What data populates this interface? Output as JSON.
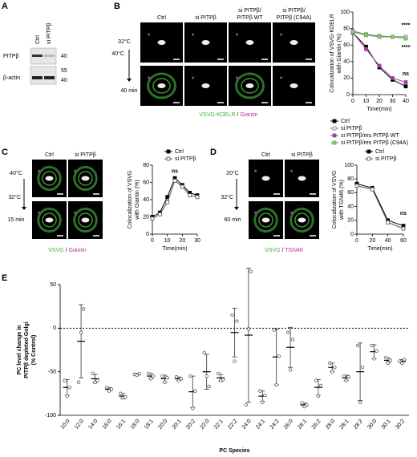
{
  "panels": {
    "A": {
      "label": "A",
      "lanes": [
        "Ctrl",
        "si PITPβ"
      ],
      "bands": [
        "PITPβ",
        "β-actin"
      ],
      "size_markers": [
        "40",
        "55",
        "40"
      ]
    },
    "B": {
      "label": "B",
      "columns": [
        [
          "Ctrl"
        ],
        [
          "si PITPβ"
        ],
        [
          "si PITPβ/",
          "PITPβ WT"
        ],
        [
          "si PITPβ/",
          "PITPβ (C94A)"
        ]
      ],
      "conditions": [
        "32°C",
        "40°C",
        "40 min"
      ],
      "stains": [
        "VSVG-KDELR",
        " / ",
        "Giantin"
      ]
    },
    "C": {
      "label": "C",
      "columns": [
        "Ctrl",
        "si PITPβ"
      ],
      "conditions": [
        "40°C",
        "32°C",
        "15 min"
      ],
      "stains": [
        "VSVG",
        " / ",
        "Giantin"
      ]
    },
    "D": {
      "label": "D",
      "columns": [
        "Ctrl",
        "si PITPβ"
      ],
      "conditions": [
        "20°C",
        "32°C",
        "60 min"
      ],
      "stains": [
        "VSVG",
        " / ",
        "TGN46"
      ]
    },
    "E": {
      "label": "E"
    }
  },
  "chart_data": [
    {
      "type": "line",
      "ylabel": [
        "Colocalization of VSVG-KDELR",
        "with Giantin (%)"
      ],
      "xlabel": "Time(min)",
      "x": [
        0,
        10,
        20,
        30,
        40
      ],
      "xlim": [
        0,
        40
      ],
      "xticks": [
        0,
        10,
        20,
        30,
        40
      ],
      "ylim": [
        0,
        100
      ],
      "yticks": [
        0,
        20,
        40,
        60,
        80,
        100
      ],
      "legend": "below",
      "series": [
        {
          "name": "Ctrl",
          "color": "#000000",
          "fill": "#000000",
          "values": [
            75,
            58,
            33,
            18,
            10
          ]
        },
        {
          "name": "si PITPβ",
          "color": "#777777",
          "fill": "#ffffff",
          "values": [
            77,
            73,
            71,
            70,
            70
          ]
        },
        {
          "name": "si PITPβ/res PITPβ WT",
          "color": "#a0439c",
          "fill": "#a0439c",
          "values": [
            75,
            55,
            35,
            20,
            15
          ]
        },
        {
          "name": "si PITPβ/res PITPβ (C94A)",
          "color": "#5aa63c",
          "fill": "#8fd27a",
          "values": [
            76,
            72,
            70,
            70,
            68
          ]
        }
      ],
      "annotations": [
        {
          "text": "****",
          "x": 40,
          "y": 84,
          "color": "#000000"
        },
        {
          "text": "****",
          "x": 40,
          "y": 57,
          "color": "#5bbf3f"
        },
        {
          "text": "ns",
          "x": 40,
          "y": 25,
          "color": "#8e44ad"
        }
      ]
    },
    {
      "type": "line",
      "ylabel": [
        "Colocalization of VSVG",
        "with Giantin (%)"
      ],
      "xlabel": "Time(min)",
      "x": [
        0,
        5,
        10,
        15,
        20,
        25,
        30
      ],
      "xlim": [
        0,
        30
      ],
      "xticks": [
        0,
        10,
        20,
        30
      ],
      "ylim": [
        0,
        80
      ],
      "yticks": [
        0,
        20,
        40,
        60,
        80
      ],
      "legend": "top",
      "series": [
        {
          "name": "Ctrl",
          "color": "#000000",
          "fill": "#000000",
          "values": [
            20,
            25,
            43,
            65,
            57,
            48,
            45
          ]
        },
        {
          "name": "si PITPβ",
          "color": "#555555",
          "fill": "#ffffff",
          "values": [
            18,
            23,
            37,
            62,
            55,
            45,
            43
          ]
        }
      ],
      "annotations": [
        {
          "text": "ns",
          "x": 15,
          "y": 73,
          "color": "#000000"
        }
      ]
    },
    {
      "type": "line",
      "ylabel": [
        "Colocalization of VSVG",
        "with TGN46 (%)"
      ],
      "xlabel": "Time(min)",
      "x": [
        0,
        20,
        40,
        60
      ],
      "xlim": [
        0,
        60
      ],
      "xticks": [
        0,
        20,
        40,
        60
      ],
      "ylim": [
        0,
        100
      ],
      "yticks": [
        0,
        20,
        40,
        60,
        80,
        100
      ],
      "legend": "top",
      "series": [
        {
          "name": "Ctrl",
          "color": "#000000",
          "fill": "#000000",
          "values": [
            73,
            67,
            20,
            12
          ]
        },
        {
          "name": "si PITPβ",
          "color": "#555555",
          "fill": "#ffffff",
          "values": [
            70,
            65,
            17,
            8
          ]
        }
      ],
      "annotations": [
        {
          "text": "ns",
          "x": 60,
          "y": 30,
          "color": "#000000"
        }
      ]
    },
    {
      "type": "dot",
      "ylabel": [
        "PC level change in",
        "PITPβ depleted Golgi",
        "(% Control)"
      ],
      "xlabel": "PC Species",
      "categories": [
        "10:0",
        "12:0",
        "14:0",
        "16:0",
        "16:1",
        "18:0",
        "18:1",
        "20:0",
        "20:1",
        "20:2",
        "22:0",
        "22:1",
        "22:2",
        "24:0",
        "24:1",
        "24:2",
        "26:0",
        "26:1",
        "26:2",
        "28:0",
        "28:1",
        "28:2",
        "30:0",
        "30:1",
        "30:2"
      ],
      "values": [
        -68,
        -15,
        -58,
        -70,
        -78,
        -53,
        -55,
        -58,
        -58,
        -73,
        -50,
        -57,
        -5,
        -8,
        -78,
        -33,
        -22,
        -88,
        -68,
        -45,
        -57,
        -50,
        -27,
        -37,
        -38
      ],
      "errors": [
        9,
        42,
        5,
        2,
        3,
        1,
        3,
        4,
        2,
        18,
        20,
        4,
        28,
        77,
        6,
        32,
        23,
        2,
        9,
        5,
        3,
        33,
        8,
        3,
        2
      ],
      "points": [
        [
          -60,
          -78,
          -68
        ],
        [
          -62,
          -5,
          22
        ],
        [
          -52,
          -62,
          -60
        ],
        [
          -68,
          -72,
          -70
        ],
        [
          -75,
          -80,
          -79
        ],
        [
          -53,
          -54,
          -52
        ],
        [
          -52,
          -58,
          -55
        ],
        [
          -55,
          -62,
          -57
        ],
        [
          -56,
          -60,
          -58
        ],
        [
          -55,
          -92,
          -72
        ],
        [
          -28,
          -55,
          -67
        ],
        [
          -52,
          -60,
          -59
        ],
        [
          15,
          -38,
          8
        ],
        [
          -88,
          -1,
          65
        ],
        [
          -72,
          -85,
          -77
        ],
        [
          -2,
          -65,
          -32
        ],
        [
          -5,
          -48,
          -13
        ],
        [
          -86,
          -90,
          -88
        ],
        [
          -60,
          -78,
          -66
        ],
        [
          -40,
          -50,
          -45
        ],
        [
          -55,
          -60,
          -56
        ],
        [
          -20,
          -85,
          -45
        ],
        [
          -20,
          -35,
          -26
        ],
        [
          -34,
          -40,
          -37
        ],
        [
          -38,
          -40,
          -36
        ]
      ],
      "ylim": [
        -100,
        50
      ],
      "yticks": [
        -100,
        -50,
        0,
        50
      ],
      "reference_line": 0
    }
  ]
}
